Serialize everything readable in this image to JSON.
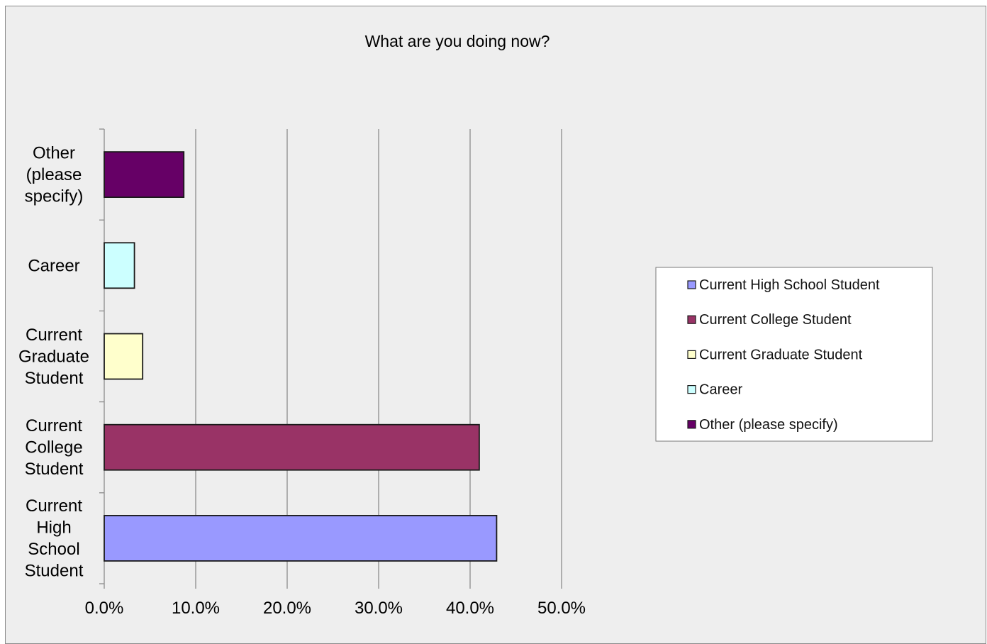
{
  "chart_data": {
    "type": "bar",
    "orientation": "horizontal",
    "title": "What are you doing now?",
    "categories": [
      "Current High School Student",
      "Current College Student",
      "Current Graduate Student",
      "Career",
      "Other (please specify)"
    ],
    "category_tick_lines": [
      [
        "Current",
        "High",
        "School",
        "Student"
      ],
      [
        "Current",
        "College",
        "Student"
      ],
      [
        "Current",
        "Graduate",
        "Student"
      ],
      [
        "Career"
      ],
      [
        "Other",
        "(please",
        "specify)"
      ]
    ],
    "values": [
      42.9,
      41.0,
      4.2,
      3.3,
      8.7
    ],
    "colors": [
      "#9999ff",
      "#993366",
      "#ffffcc",
      "#ccffff",
      "#660066"
    ],
    "xlim": [
      0,
      50
    ],
    "x_ticks": [
      "0.0%",
      "10.0%",
      "20.0%",
      "30.0%",
      "40.0%",
      "50.0%"
    ],
    "xlabel": "",
    "ylabel": "",
    "grid": "vertical",
    "legend_position": "right",
    "legend": [
      "Current High School Student",
      "Current College Student",
      "Current Graduate Student",
      "Career",
      "Other (please specify)"
    ]
  }
}
